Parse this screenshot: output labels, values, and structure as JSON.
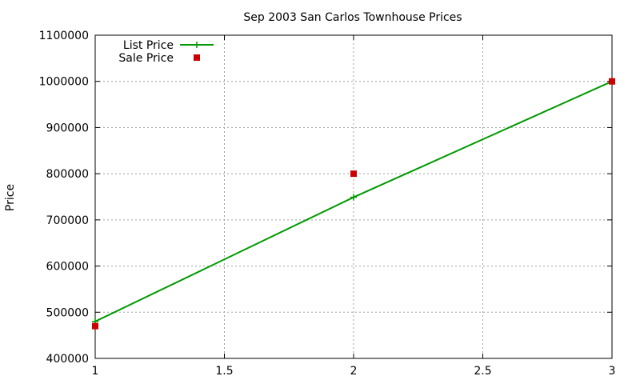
{
  "chart_data": {
    "type": "line",
    "title": "Sep 2003 San Carlos Townhouse Prices",
    "xlabel": "",
    "ylabel": "Price",
    "xlim": [
      1,
      3
    ],
    "ylim": [
      400000,
      1100000
    ],
    "xticks": [
      1,
      1.5,
      2,
      2.5,
      3
    ],
    "xtick_labels": [
      "1",
      "1.5",
      "2",
      "2.5",
      "3"
    ],
    "yticks": [
      400000,
      500000,
      600000,
      700000,
      800000,
      900000,
      1000000,
      1100000
    ],
    "ytick_labels": [
      "400000",
      "500000",
      "600000",
      "700000",
      "800000",
      "900000",
      "1000000",
      "1100000"
    ],
    "grid": true,
    "legend_position": "top-left",
    "series": [
      {
        "name": "List Price",
        "style": "linespoints",
        "marker": "plus",
        "color": "#009900",
        "x": [
          1,
          2,
          3
        ],
        "y": [
          480000,
          749000,
          1000000
        ]
      },
      {
        "name": "Sale Price",
        "style": "points",
        "marker": "square",
        "color": "#cc0000",
        "x": [
          1,
          2,
          3
        ],
        "y": [
          470000,
          800000,
          1000000
        ]
      }
    ]
  }
}
